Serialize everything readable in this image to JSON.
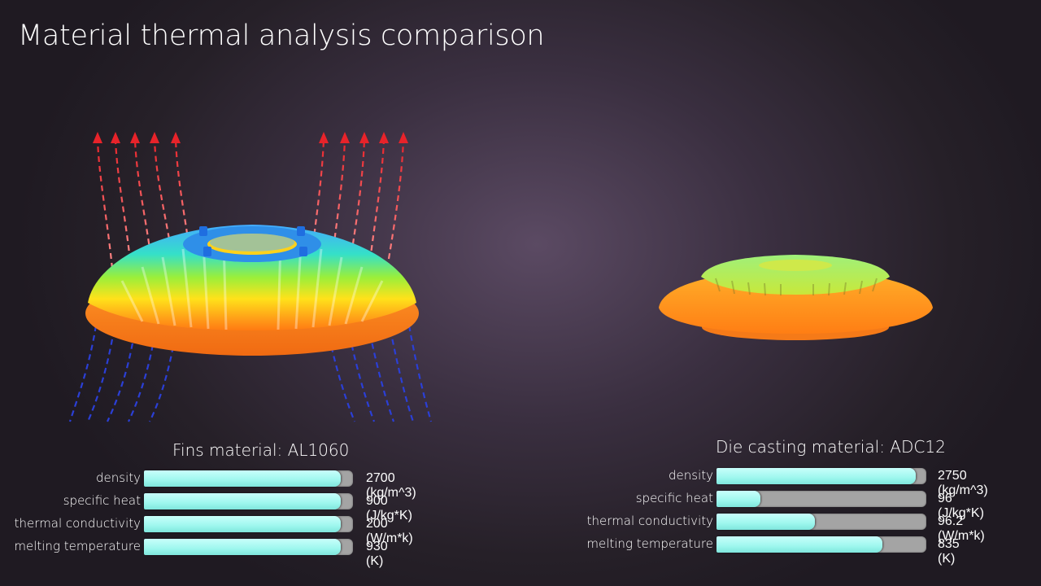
{
  "title": "Material thermal analysis comparison",
  "left_panel": {
    "title": "Fins material: AL1060",
    "rows": [
      {
        "label": "density",
        "value": "2700 (kg/m^3)",
        "fill": 0.94
      },
      {
        "label": "specific heat",
        "value": "900 (J/kg*K)",
        "fill": 0.94
      },
      {
        "label": "thermal conductivity",
        "value": "200 (W/m*k)",
        "fill": 0.94
      },
      {
        "label": "melting temperature",
        "value": "930 (K)",
        "fill": 0.94
      }
    ]
  },
  "right_panel": {
    "title": "Die casting material: ADC12",
    "rows": [
      {
        "label": "density",
        "value": "2750 (kg/m^3)",
        "fill": 0.95
      },
      {
        "label": "specific heat",
        "value": "96 (J/kg*K)",
        "fill": 0.21
      },
      {
        "label": "thermal conductivity",
        "value": "96.2 (W/m*k)",
        "fill": 0.47
      },
      {
        "label": "melting temperature",
        "value": "835 (K)",
        "fill": 0.79
      }
    ]
  },
  "colors": {
    "bar_fill": "#9ef7ee",
    "bar_track": "#a4a4a4",
    "hot_arrow": "#e8232a",
    "cold_arrow": "#2b3fd6",
    "heatsink_hot": "#ff8a1a",
    "heatsink_cool": "#3fa6ff"
  },
  "icons": [
    "heatsink-simulation-image",
    "die-cast-heatsink-image",
    "airflow-arrows"
  ]
}
